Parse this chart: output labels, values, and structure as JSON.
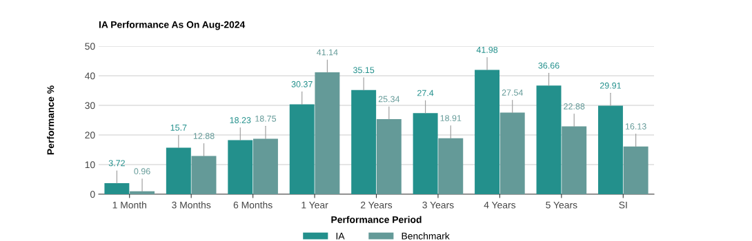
{
  "chart_data": {
    "type": "bar",
    "title": "IA Performance As On Aug-2024",
    "xlabel": "Performance Period",
    "ylabel": "Performance %",
    "categories": [
      "1 Month",
      "3 Months",
      "6 Months",
      "1 Year",
      "2 Years",
      "3 Years",
      "4 Years",
      "5 Years",
      "SI"
    ],
    "series": [
      {
        "name": "IA",
        "color": "#23908c",
        "values": [
          3.72,
          15.7,
          18.23,
          30.37,
          35.15,
          27.4,
          41.98,
          36.66,
          29.91
        ]
      },
      {
        "name": "Benchmark",
        "color": "#649a98",
        "values": [
          0.96,
          12.88,
          18.75,
          41.14,
          25.34,
          18.91,
          27.54,
          22.88,
          16.13
        ]
      }
    ],
    "ylim": [
      0,
      50
    ],
    "yticks": [
      0,
      10,
      20,
      30,
      40,
      50
    ],
    "grid": "y",
    "legend": "bottom",
    "data_labels": true
  }
}
